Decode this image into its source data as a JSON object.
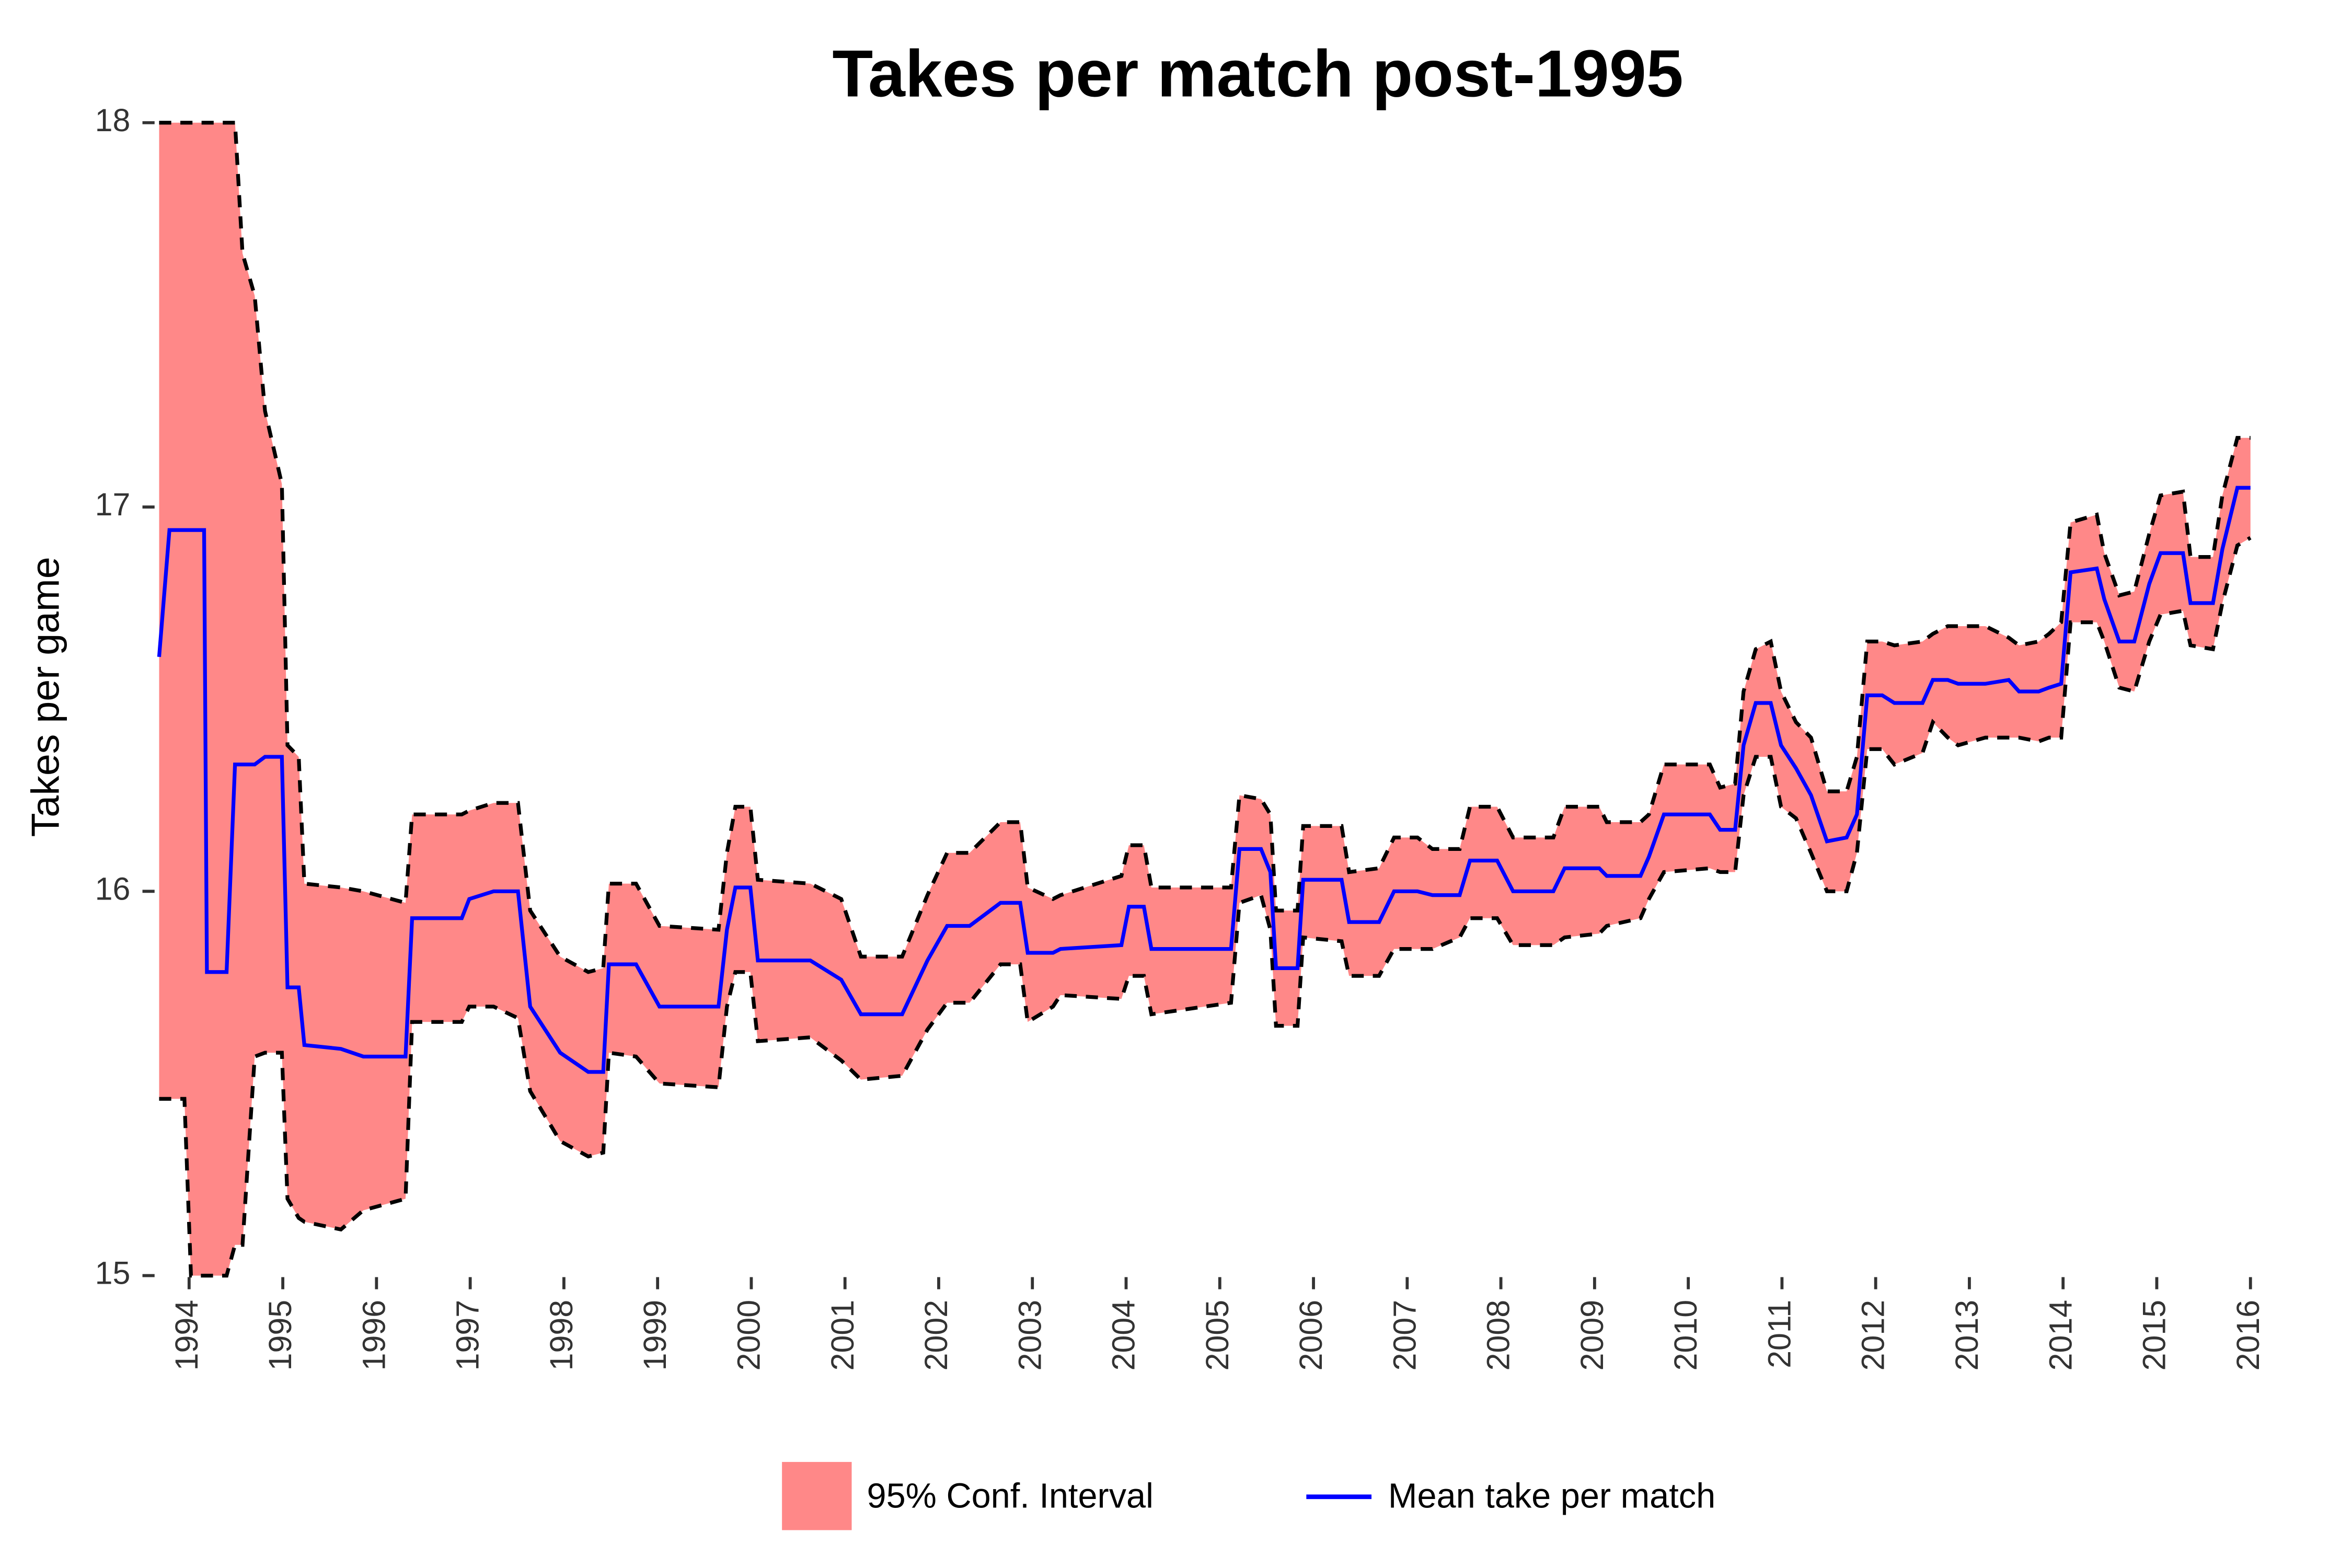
{
  "chart_data": {
    "type": "line",
    "title": "Takes per match post-1995",
    "y_label": "Takes per game",
    "x": [
      1993.68,
      1993.79,
      1993.95,
      1994.02,
      1994.16,
      1994.19,
      1994.4,
      1994.49,
      1994.57,
      1994.7,
      1994.81,
      1994.99,
      1995.05,
      1995.17,
      1995.23,
      1995.62,
      1995.86,
      1996.31,
      1996.38,
      1996.91,
      1996.99,
      1997.25,
      1997.51,
      1997.64,
      1997.96,
      1998.26,
      1998.42,
      1998.48,
      1998.77,
      1999.02,
      1999.65,
      1999.74,
      1999.83,
      1999.99,
      2000.07,
      2000.63,
      2000.96,
      2001.17,
      2001.61,
      2001.88,
      2002.09,
      2002.33,
      2002.66,
      2002.87,
      2002.95,
      2003.22,
      2003.3,
      2003.95,
      2004.03,
      2004.19,
      2004.27,
      2005.12,
      2005.21,
      2005.44,
      2005.54,
      2005.6,
      2005.83,
      2005.89,
      2006.3,
      2006.38,
      2006.7,
      2006.86,
      2007.11,
      2007.27,
      2007.56,
      2007.67,
      2007.96,
      2008.13,
      2008.56,
      2008.68,
      2009.05,
      2009.13,
      2009.49,
      2009.58,
      2009.74,
      2010.23,
      2010.34,
      2010.5,
      2010.59,
      2010.72,
      2010.88,
      2010.99,
      2011.15,
      2011.31,
      2011.48,
      2011.69,
      2011.8,
      2011.91,
      2012.07,
      2012.2,
      2012.5,
      2012.61,
      2012.77,
      2012.88,
      2013.17,
      2013.42,
      2013.53,
      2013.74,
      2013.85,
      2013.98,
      2014.08,
      2014.36,
      2014.44,
      2014.6,
      2014.76,
      2014.92,
      2015.04,
      2015.28,
      2015.36,
      2015.6,
      2015.7,
      2015.86,
      2016.0
    ],
    "series": [
      {
        "name": "95% Conf. Interval",
        "color": "#ff8888",
        "lower": [
          15.46,
          15.46,
          15.46,
          15.0,
          15.0,
          15.0,
          15.0,
          15.08,
          15.08,
          15.57,
          15.58,
          15.58,
          15.2,
          15.15,
          15.14,
          15.12,
          15.17,
          15.2,
          15.66,
          15.66,
          15.7,
          15.7,
          15.67,
          15.48,
          15.35,
          15.31,
          15.32,
          15.58,
          15.57,
          15.5,
          15.49,
          15.7,
          15.79,
          15.79,
          15.61,
          15.62,
          15.56,
          15.51,
          15.52,
          15.64,
          15.71,
          15.71,
          15.81,
          15.81,
          15.66,
          15.7,
          15.73,
          15.72,
          15.78,
          15.78,
          15.68,
          15.71,
          15.97,
          15.99,
          15.9,
          15.65,
          15.65,
          15.88,
          15.87,
          15.78,
          15.78,
          15.85,
          15.85,
          15.85,
          15.88,
          15.93,
          15.93,
          15.86,
          15.86,
          15.88,
          15.89,
          15.91,
          15.93,
          15.98,
          16.05,
          16.06,
          16.05,
          16.05,
          16.25,
          16.35,
          16.35,
          16.22,
          16.19,
          16.1,
          16.0,
          16.0,
          16.1,
          16.37,
          16.37,
          16.33,
          16.36,
          16.44,
          16.4,
          16.38,
          16.4,
          16.4,
          16.4,
          16.39,
          16.4,
          16.4,
          16.7,
          16.7,
          16.65,
          16.53,
          16.52,
          16.65,
          16.72,
          16.73,
          16.64,
          16.63,
          16.75,
          16.9,
          16.92
        ],
        "upper": [
          18.0,
          18.0,
          18.0,
          18.0,
          18.0,
          18.0,
          18.0,
          18.0,
          17.66,
          17.55,
          17.25,
          17.06,
          16.38,
          16.35,
          16.02,
          16.01,
          16.0,
          15.97,
          16.2,
          16.2,
          16.21,
          16.23,
          16.23,
          15.95,
          15.83,
          15.79,
          15.8,
          16.02,
          16.02,
          15.91,
          15.9,
          16.1,
          16.22,
          16.22,
          16.03,
          16.02,
          15.98,
          15.83,
          15.83,
          15.99,
          16.1,
          16.1,
          16.18,
          16.18,
          16.01,
          15.98,
          15.99,
          16.04,
          16.12,
          16.12,
          16.01,
          16.01,
          16.25,
          16.24,
          16.2,
          15.95,
          15.95,
          16.17,
          16.17,
          16.05,
          16.06,
          16.14,
          16.14,
          16.11,
          16.11,
          16.22,
          16.22,
          16.14,
          16.14,
          16.22,
          16.22,
          16.18,
          16.18,
          16.2,
          16.33,
          16.33,
          16.27,
          16.28,
          16.52,
          16.63,
          16.65,
          16.52,
          16.44,
          16.4,
          16.26,
          16.26,
          16.35,
          16.65,
          16.65,
          16.64,
          16.65,
          16.67,
          16.69,
          16.69,
          16.69,
          16.66,
          16.64,
          16.65,
          16.67,
          16.7,
          16.96,
          16.98,
          16.88,
          16.77,
          16.78,
          16.93,
          17.03,
          17.04,
          16.87,
          16.87,
          17.03,
          17.18,
          17.18
        ]
      },
      {
        "name": "Mean take per match",
        "color": "#0000ff",
        "values": [
          16.61,
          16.94,
          16.94,
          16.94,
          16.94,
          15.79,
          15.79,
          16.33,
          16.33,
          16.33,
          16.35,
          16.35,
          15.75,
          15.75,
          15.6,
          15.59,
          15.57,
          15.57,
          15.93,
          15.93,
          15.98,
          16.0,
          16.0,
          15.7,
          15.58,
          15.53,
          15.53,
          15.81,
          15.81,
          15.7,
          15.7,
          15.9,
          16.01,
          16.01,
          15.82,
          15.82,
          15.77,
          15.68,
          15.68,
          15.82,
          15.91,
          15.91,
          15.97,
          15.97,
          15.84,
          15.84,
          15.85,
          15.86,
          15.96,
          15.96,
          15.85,
          15.85,
          16.11,
          16.11,
          16.05,
          15.8,
          15.8,
          16.03,
          16.03,
          15.92,
          15.92,
          16.0,
          16.0,
          15.99,
          15.99,
          16.08,
          16.08,
          16.0,
          16.0,
          16.06,
          16.06,
          16.04,
          16.04,
          16.09,
          16.2,
          16.2,
          16.16,
          16.16,
          16.38,
          16.49,
          16.49,
          16.38,
          16.32,
          16.25,
          16.13,
          16.14,
          16.2,
          16.51,
          16.51,
          16.49,
          16.49,
          16.55,
          16.55,
          16.54,
          16.54,
          16.55,
          16.52,
          16.52,
          16.53,
          16.54,
          16.83,
          16.84,
          16.76,
          16.65,
          16.65,
          16.8,
          16.88,
          16.88,
          16.75,
          16.75,
          16.89,
          17.05,
          17.05
        ]
      }
    ],
    "xlim": [
      1993.68,
      2016.0
    ],
    "xticks": [
      1994,
      1995,
      1996,
      1997,
      1998,
      1999,
      2000,
      2001,
      2002,
      2003,
      2004,
      2005,
      2006,
      2007,
      2008,
      2009,
      2010,
      2011,
      2012,
      2013,
      2014,
      2015,
      2016
    ],
    "ylim": [
      15,
      18
    ],
    "yticks": [
      15,
      16,
      17,
      18
    ],
    "grid": false,
    "legend": "bottom"
  }
}
